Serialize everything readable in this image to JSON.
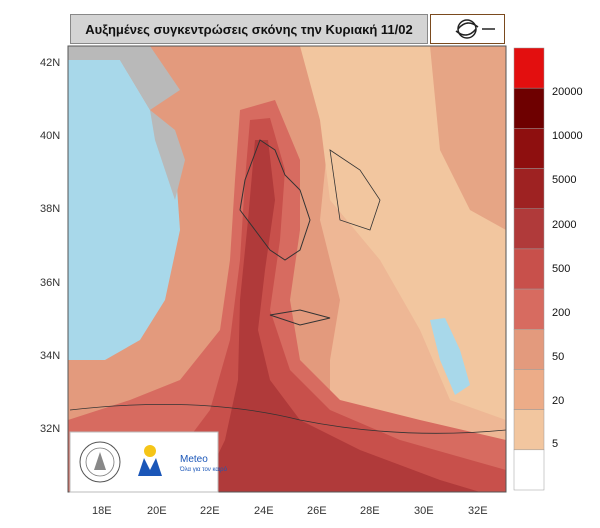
{
  "title": "Αυξημένες συγκεντρώσεις σκόνης την Κυριακή 11/02",
  "latitude_labels": [
    "42N",
    "40N",
    "38N",
    "36N",
    "34N",
    "32N"
  ],
  "longitude_labels": [
    "18E",
    "20E",
    "22E",
    "24E",
    "26E",
    "28E",
    "30E",
    "32E"
  ],
  "colorbar_labels": [
    "20000",
    "10000",
    "5000",
    "2000",
    "500",
    "200",
    "50",
    "20",
    "5"
  ],
  "colorbar_colors": [
    "#e30f0f",
    "#6e0000",
    "#8e0f0f",
    "#9e2222",
    "#b03a3a",
    "#c8504b",
    "#d76b60",
    "#e39a7d",
    "#ecac88",
    "#f2c69f",
    "#ffffff"
  ],
  "logos": {
    "brand": "Meteo",
    "tagline": "Όλα για τον καιρό"
  },
  "icons": [
    "academy-seal-icon",
    "meteo-logo-icon",
    "hurricane-logo-icon"
  ]
}
